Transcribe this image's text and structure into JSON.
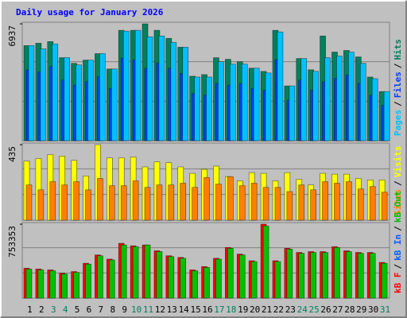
{
  "title": "Daily usage for January 2026",
  "separator": "/",
  "categories": [
    "1",
    "2",
    "3",
    "4",
    "5",
    "6",
    "7",
    "8",
    "9",
    "10",
    "11",
    "12",
    "13",
    "14",
    "15",
    "16",
    "17",
    "18",
    "19",
    "20",
    "21",
    "22",
    "23",
    "24",
    "25",
    "26",
    "27",
    "28",
    "29",
    "30",
    "31"
  ],
  "category_colors": [
    "#000000",
    "#000000",
    "#00805c",
    "#00805c",
    "#000000",
    "#000000",
    "#000000",
    "#000000",
    "#000000",
    "#00805c",
    "#00805c",
    "#000000",
    "#000000",
    "#000000",
    "#000000",
    "#000000",
    "#00805c",
    "#00805c",
    "#000000",
    "#000000",
    "#000000",
    "#000000",
    "#000000",
    "#00805c",
    "#00805c",
    "#000000",
    "#000000",
    "#000000",
    "#000000",
    "#000000",
    "#00805c"
  ],
  "chart_data": [
    {
      "type": "bar",
      "ylim": [
        0,
        6937
      ],
      "yticks": [
        6937
      ],
      "legend_reverse": true,
      "series": [
        {
          "name": "Hits",
          "color": "#00805c",
          "values": [
            5645,
            5789,
            5884,
            4928,
            4593,
            4784,
            5167,
            4258,
            6554,
            6554,
            6937,
            6554,
            6076,
            5549,
            3827,
            3923,
            4928,
            4832,
            4688,
            4306,
            4114,
            6554,
            3253,
            4880,
            4210,
            6219,
            5262,
            5358,
            4975,
            3779,
            2918
          ]
        },
        {
          "name": "Files",
          "color": "#0040ff",
          "values": [
            4200,
            4100,
            4400,
            3600,
            3300,
            3500,
            3800,
            3100,
            4900,
            4800,
            4300,
            4600,
            4300,
            4000,
            2800,
            2700,
            3400,
            3300,
            3400,
            3100,
            3000,
            4800,
            2400,
            3600,
            3000,
            3500,
            3700,
            3900,
            3400,
            2700,
            2100
          ]
        },
        {
          "name": "Pages",
          "color": "#00c0ff",
          "values": [
            5645,
            5454,
            5740,
            4928,
            4497,
            4784,
            5167,
            4258,
            6506,
            6554,
            6171,
            6219,
            5836,
            5549,
            3780,
            3780,
            4688,
            4545,
            4545,
            4306,
            4019,
            6458,
            3253,
            4880,
            4115,
            4928,
            5024,
            5262,
            4593,
            3683,
            2918
          ]
        }
      ]
    },
    {
      "type": "bar",
      "ylim": [
        0,
        435
      ],
      "yticks": [
        435
      ],
      "legend_reverse": true,
      "series": [
        {
          "name": "Visits",
          "color": "#ffff00",
          "values": [
            340,
            355,
            378,
            369,
            345,
            255,
            435,
            359,
            359,
            364,
            307,
            336,
            331,
            307,
            270,
            293,
            312,
            251,
            227,
            274,
            270,
            227,
            274,
            236,
            203,
            270,
            265,
            265,
            241,
            232,
            232
          ]
        },
        {
          "name": "Sites",
          "color": "#ff8000",
          "values": [
            203,
            175,
            222,
            203,
            222,
            175,
            241,
            199,
            199,
            227,
            189,
            203,
            203,
            213,
            189,
            246,
            208,
            251,
            199,
            213,
            189,
            189,
            165,
            203,
            175,
            222,
            213,
            222,
            180,
            194,
            161
          ]
        }
      ]
    },
    {
      "type": "bar",
      "ylim": [
        0,
        753353
      ],
      "yticks": [
        753353
      ],
      "legend_reverse": false,
      "series": [
        {
          "name": "kB F",
          "color": "#ff0000",
          "values": [
            304740,
            296275,
            287810,
            253950,
            270880,
            355530,
            440180,
            397855,
            558690,
            533295,
            541760,
            482505,
            431715,
            414785,
            287810,
            321670,
            406320,
            516365,
            448645,
            380925,
            753353,
            380925,
            507900,
            465575,
            474040,
            474040,
            524830,
            482505,
            465575,
            465575,
            363995
          ]
        },
        {
          "name": "kB In",
          "color": "#0060ff",
          "values": [
            null,
            null,
            null,
            null,
            null,
            null,
            null,
            null,
            null,
            null,
            null,
            null,
            null,
            null,
            null,
            null,
            null,
            null,
            null,
            null,
            null,
            null,
            null,
            null,
            null,
            null,
            null,
            null,
            null,
            null,
            null
          ]
        },
        {
          "name": "kB Out",
          "color": "#00c000",
          "values": [
            296000,
            287800,
            279300,
            245500,
            262400,
            347000,
            431700,
            389400,
            541800,
            524800,
            541800,
            474000,
            423300,
            406300,
            279300,
            313200,
            397900,
            507900,
            440200,
            372500,
            736400,
            372500,
            499400,
            457100,
            465600,
            465600,
            516400,
            474000,
            457100,
            457100,
            355500
          ]
        }
      ]
    }
  ]
}
